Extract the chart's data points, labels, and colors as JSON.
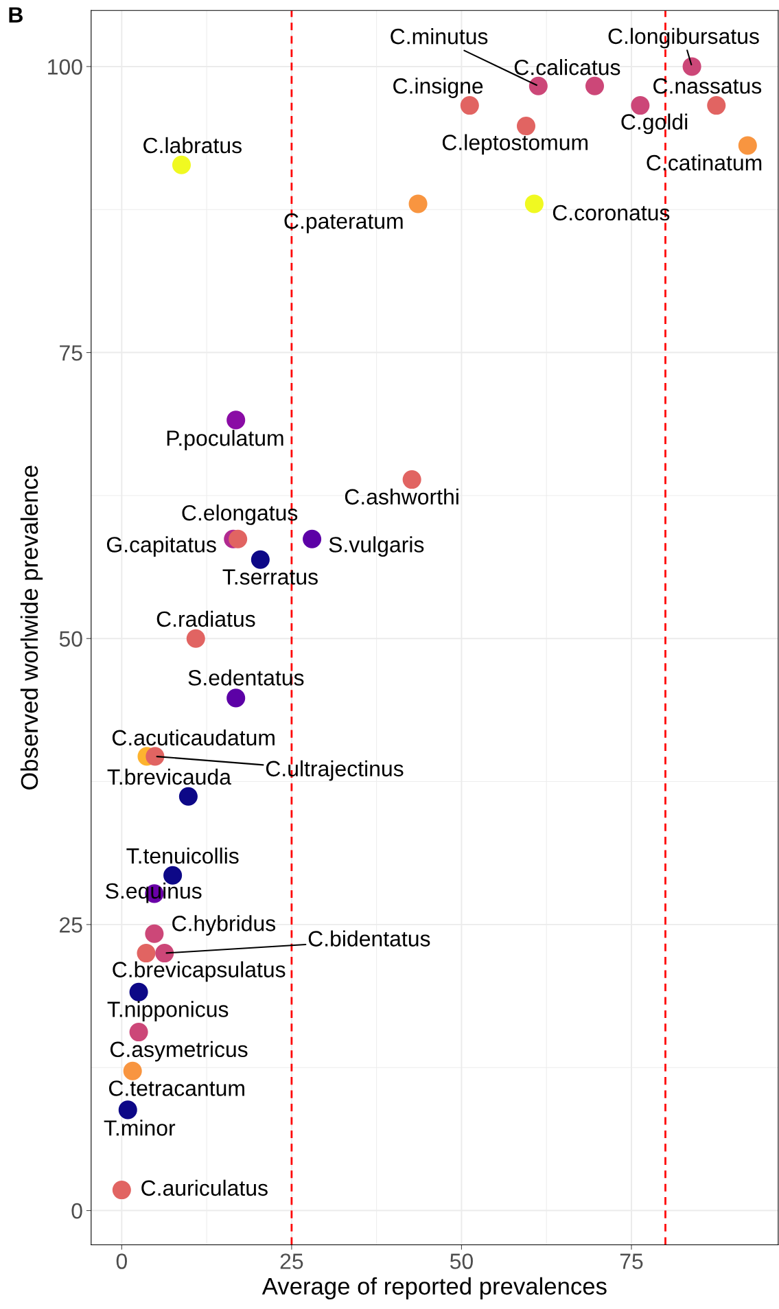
{
  "chart_data": {
    "type": "scatter",
    "xlabel": "Average of reported prevalences",
    "ylabel": "Observed worlwide prevalence",
    "xlim": [
      -4.5,
      96.6
    ],
    "ylim": [
      -3.0,
      104.9
    ],
    "xticks": [
      0,
      25,
      50,
      75
    ],
    "yticks": [
      0,
      25,
      50,
      75,
      100
    ],
    "grid": true,
    "legend": false,
    "marker": "circle",
    "x": [
      83.9,
      61.3,
      69.6,
      51.2,
      76.3,
      87.5,
      59.5,
      92.1,
      8.8,
      43.6,
      60.7,
      16.8,
      42.7,
      16.4,
      17.1,
      28.0,
      20.4,
      10.9,
      16.8,
      3.7,
      4.9,
      9.8,
      7.5,
      4.8,
      4.8,
      3.6,
      6.3,
      2.5,
      2.5,
      1.6,
      0.9,
      0.0
    ],
    "values": [
      100,
      98.3,
      98.3,
      96.6,
      96.6,
      96.6,
      94.8,
      93.1,
      91.4,
      88.0,
      88.0,
      69.1,
      63.9,
      58.7,
      58.7,
      58.7,
      56.9,
      50.0,
      44.8,
      39.7,
      39.7,
      36.2,
      29.3,
      27.7,
      24.2,
      22.5,
      22.5,
      19.1,
      15.6,
      12.2,
      8.8,
      1.8
    ],
    "colors": [
      "#cc4778",
      "#cc4778",
      "#cc4778",
      "#e16462",
      "#cc4778",
      "#e16462",
      "#e16462",
      "#f89540",
      "#f0f921",
      "#f89540",
      "#f0f921",
      "#8a0ca5",
      "#e16462",
      "#b12a90",
      "#e16462",
      "#5c01a6",
      "#0d0887",
      "#e16462",
      "#5c01a6",
      "#fdb32f",
      "#e16462",
      "#0d0887",
      "#0d0887",
      "#6a00a8",
      "#cc4778",
      "#e16462",
      "#cc4778",
      "#0d0887",
      "#cc4778",
      "#f89540",
      "#0d0887",
      "#e16462"
    ],
    "ref_lines": [
      {
        "axis": "x",
        "value": 25,
        "color": "#ff0000",
        "line_style": "dashed"
      },
      {
        "axis": "x",
        "value": 80,
        "color": "#ff0000",
        "line_style": "dashed"
      }
    ],
    "annotations": [
      "B",
      {
        "text": "C.longibursatus",
        "x": 83.9,
        "y": 100
      },
      {
        "text": "C.minutus",
        "x": 61.3,
        "y": 98.3
      },
      {
        "text": "C.calicatus",
        "x": 69.6,
        "y": 98.3
      },
      {
        "text": "C.insigne",
        "x": 51.2,
        "y": 96.6
      },
      {
        "text": "C.goldi",
        "x": 76.3,
        "y": 96.6
      },
      {
        "text": "C.nassatus",
        "x": 87.5,
        "y": 96.6
      },
      {
        "text": "C.leptostomum",
        "x": 59.5,
        "y": 94.8
      },
      {
        "text": "C.catinatum",
        "x": 92.1,
        "y": 93.1
      },
      {
        "text": "C.labratus",
        "x": 8.8,
        "y": 91.4
      },
      {
        "text": "C.pateratum",
        "x": 43.6,
        "y": 88.0
      },
      {
        "text": "C.coronatus",
        "x": 60.7,
        "y": 88.0
      },
      {
        "text": "P.poculatum",
        "x": 16.8,
        "y": 69.1
      },
      {
        "text": "C.ashworthi",
        "x": 42.7,
        "y": 63.9
      },
      {
        "text": "G.capitatus",
        "x": 16.4,
        "y": 58.7
      },
      {
        "text": "C.elongatus",
        "x": 17.1,
        "y": 58.7
      },
      {
        "text": "S.vulgaris",
        "x": 28.0,
        "y": 58.7
      },
      {
        "text": "T.serratus",
        "x": 20.4,
        "y": 56.9
      },
      {
        "text": "C.radiatus",
        "x": 10.9,
        "y": 50.0
      },
      {
        "text": "S.edentatus",
        "x": 16.8,
        "y": 44.8
      },
      {
        "text": "C.acuticaudatum",
        "x": 3.7,
        "y": 39.7
      },
      {
        "text": "C.ultrajectinus",
        "x": 4.9,
        "y": 39.7
      },
      {
        "text": "T.brevicauda",
        "x": 9.8,
        "y": 36.2
      },
      {
        "text": "T.tenuicollis",
        "x": 7.5,
        "y": 29.3
      },
      {
        "text": "S.equinus",
        "x": 4.8,
        "y": 27.7
      },
      {
        "text": "C.hybridus",
        "x": 4.8,
        "y": 24.2
      },
      {
        "text": "C.brevicapsulatus",
        "x": 3.6,
        "y": 22.5
      },
      {
        "text": "C.bidentatus",
        "x": 6.3,
        "y": 22.5
      },
      {
        "text": "T.nipponicus",
        "x": 2.5,
        "y": 19.1
      },
      {
        "text": "C.asymetricus",
        "x": 2.5,
        "y": 15.6
      },
      {
        "text": "C.tetracantum",
        "x": 1.6,
        "y": 12.2
      },
      {
        "text": "T.minor",
        "x": 0.9,
        "y": 8.8
      },
      {
        "text": "C.auriculatus",
        "x": 0.0,
        "y": 1.8
      }
    ]
  }
}
